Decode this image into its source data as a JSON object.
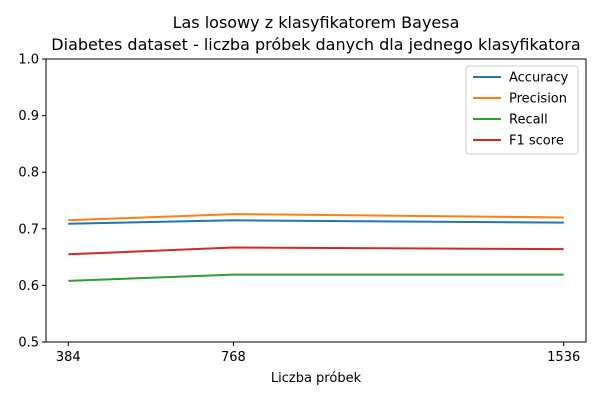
{
  "chart_data": {
    "type": "line",
    "title": "Las losowy z klasyfikatorem Bayesa",
    "subtitle": "Diabetes dataset - liczba próbek danych dla jednego klasyfikatora",
    "xlabel": "Liczba próbek",
    "ylabel": "",
    "x": [
      384,
      768,
      1536
    ],
    "x_tick_labels": [
      "384",
      "768",
      "1536"
    ],
    "ylim": [
      0.5,
      1.0
    ],
    "y_ticks": [
      0.5,
      0.6,
      0.7,
      0.8,
      0.9,
      1.0
    ],
    "y_tick_labels": [
      "0.5",
      "0.6",
      "0.7",
      "0.8",
      "0.9",
      "1.0"
    ],
    "grid": false,
    "legend_position": "top-right",
    "series": [
      {
        "name": "Accuracy",
        "color": "#1f77b4",
        "values": [
          0.709,
          0.715,
          0.711
        ]
      },
      {
        "name": "Precision",
        "color": "#ff7f0e",
        "values": [
          0.715,
          0.726,
          0.72
        ]
      },
      {
        "name": "Recall",
        "color": "#2ca02c",
        "values": [
          0.608,
          0.619,
          0.619
        ]
      },
      {
        "name": "F1 score",
        "color": "#d62728",
        "values": [
          0.655,
          0.667,
          0.664
        ]
      }
    ]
  }
}
